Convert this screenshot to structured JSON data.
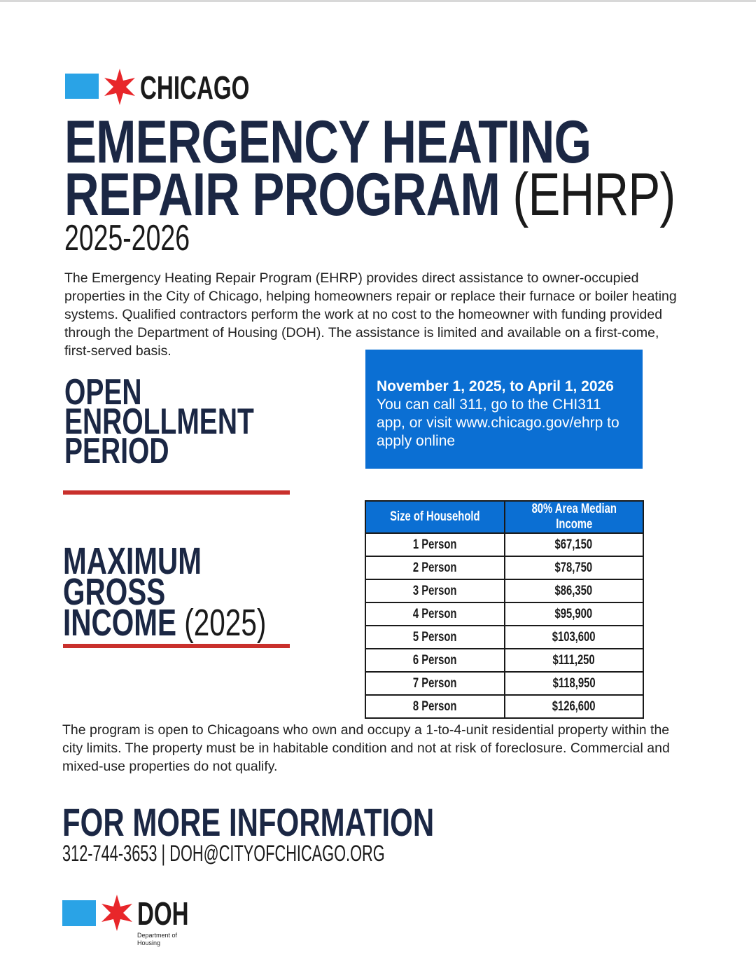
{
  "header": {
    "logo_text": "CHICAGO"
  },
  "title": {
    "line1": "EMERGENCY HEATING",
    "line2": "REPAIR PROGRAM",
    "acronym": "(EHRP)",
    "years": "2025-2026"
  },
  "intro": "The Emergency Heating Repair Program (EHRP) provides direct assistance to owner-occupied properties in the City of Chicago, helping homeowners repair or replace their furnace or boiler heating systems. Qualified contractors perform the work at no cost to the homeowner with funding provided through the Department of Housing (DOH).  The assistance is limited and available on a first-come, first-served basis.",
  "enrollment": {
    "heading": [
      "OPEN",
      "ENROLLMENT",
      "PERIOD"
    ],
    "dates": "November 1, 2025, to April 1, 2026",
    "instructions": "You can call 311, go to the CHI311 app, or visit www.chicago.gov/ehrp to apply online"
  },
  "income": {
    "heading": [
      "MAXIMUM",
      "GROSS",
      "INCOME"
    ],
    "year": "(2025)",
    "columns": [
      "Size of Household",
      "80% Area Median Income"
    ],
    "rows": [
      [
        "1 Person",
        "$67,150"
      ],
      [
        "2 Person",
        "$78,750"
      ],
      [
        "3 Person",
        "$86,350"
      ],
      [
        "4 Person",
        "$95,900"
      ],
      [
        "5 Person",
        "$103,600"
      ],
      [
        "6 Person",
        "$111,250"
      ],
      [
        "7 Person",
        "$118,950"
      ],
      [
        "8 Person",
        "$126,600"
      ]
    ]
  },
  "eligibility": "The program is open to Chicagoans who own and occupy a 1-to-4-unit residential property within the city limits. The property must be in habitable condition and not at risk of foreclosure. Commercial and mixed-use properties do not qualify.",
  "more_info": {
    "heading": "FOR MORE INFORMATION",
    "contact": "312-744-3653 | DOH@CITYOFCHICAGO.ORG"
  },
  "footer_logo": {
    "text": "DOH",
    "subtitle_line1": "Department of",
    "subtitle_line2": "Housing"
  },
  "colors": {
    "navy": "#1b2744",
    "blue": "#0b6fd3",
    "light_blue": "#2aa3e6",
    "red": "#c9302c",
    "star_red": "#e8262a"
  }
}
